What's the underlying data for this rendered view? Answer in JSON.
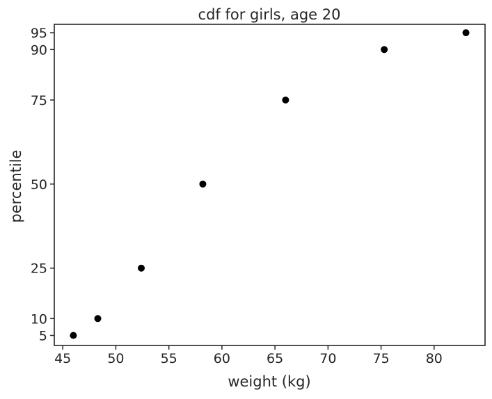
{
  "chart_data": {
    "type": "scatter",
    "title": "cdf for girls, age 20",
    "xlabel": "weight (kg)",
    "ylabel": "percentile",
    "x": [
      46.0,
      48.3,
      52.4,
      58.2,
      66.0,
      75.3,
      83.0
    ],
    "y": [
      5,
      10,
      25,
      50,
      75,
      90,
      95
    ],
    "xlim": [
      44.2,
      84.8
    ],
    "ylim": [
      2.0,
      97.5
    ],
    "xticks": [
      45,
      50,
      55,
      60,
      65,
      70,
      75,
      80
    ],
    "yticks": [
      5,
      10,
      25,
      50,
      75,
      90,
      95
    ],
    "grid": false,
    "marker_color": "#000000",
    "axis_color": "#262626"
  }
}
